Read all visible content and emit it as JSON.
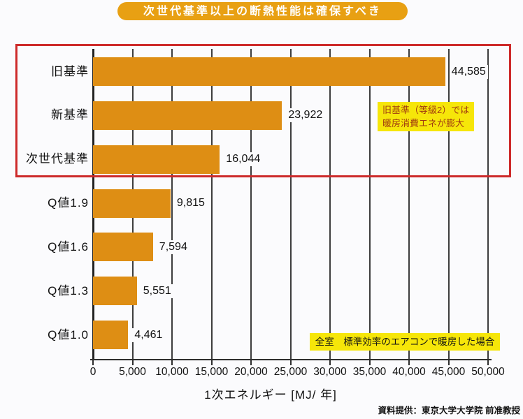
{
  "title_banner": {
    "text": "次世代基準以上の断熱性能は確保すべき",
    "bg_color": "#E8A013",
    "text_color": "#FFFFFF"
  },
  "chart_data": {
    "type": "bar",
    "orientation": "horizontal",
    "title": "次世代基準以上の断熱性能は確保すべき",
    "categories": [
      "旧基準",
      "新基準",
      "次世代基準",
      "Q値1.9",
      "Q値1.6",
      "Q値1.3",
      "Q値1.0"
    ],
    "values": [
      44585,
      23922,
      16044,
      9815,
      7594,
      5551,
      4461
    ],
    "value_labels": [
      "44,585",
      "23,922",
      "16,044",
      "9,815",
      "7,594",
      "5,551",
      "4,461"
    ],
    "xlabel": "1次エネルギー [MJ/ 年]",
    "ylabel": "",
    "xlim": [
      0,
      50000
    ],
    "x_ticks": [
      0,
      5000,
      10000,
      15000,
      20000,
      25000,
      30000,
      35000,
      40000,
      45000,
      50000
    ],
    "x_tick_labels": [
      "0",
      "5,000",
      "10,000",
      "15,000",
      "20,000",
      "25,000",
      "30,000",
      "35,000",
      "40,000",
      "45,000",
      "50,000"
    ],
    "bar_color": "#DE8E14",
    "grid": true,
    "highlighted_categories": [
      "旧基準",
      "新基準",
      "次世代基準"
    ]
  },
  "annotations": {
    "highlight_frame_color": "#CD2A2A",
    "highlight_note": {
      "line1": "旧基準（等級2）では",
      "line2": "暖房消費エネが膨大",
      "bg_color": "#F6E609",
      "text_color": "#A03A10"
    },
    "condition_note": {
      "text": "全室　標準効率のエアコンで暖房した場合",
      "bg_color": "#F6E609",
      "text_color": "#141414"
    }
  },
  "credit": "資料提供：東京大学大学院 前准教授"
}
